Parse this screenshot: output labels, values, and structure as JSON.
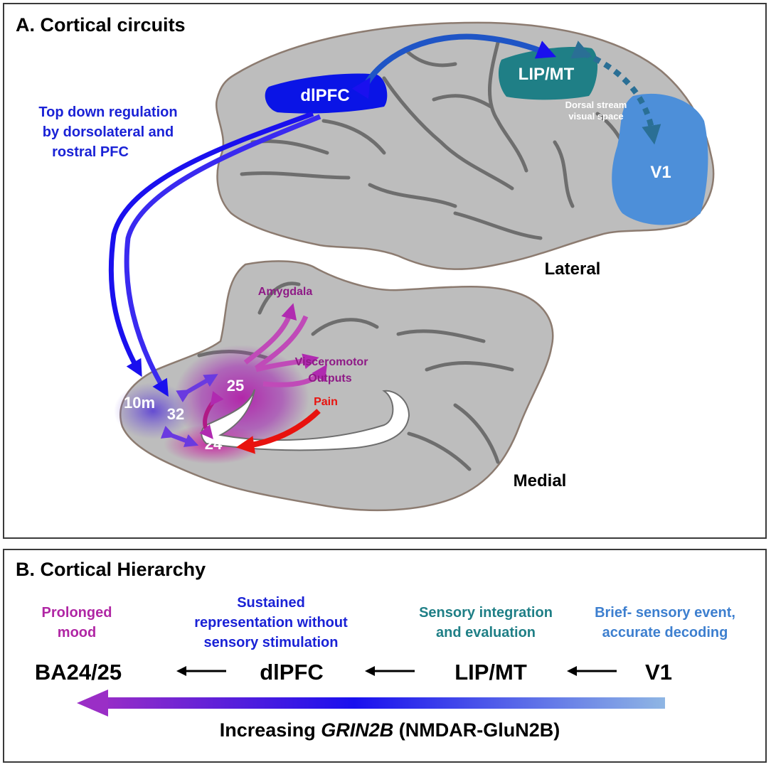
{
  "panel_a": {
    "title": "A. Cortical circuits",
    "top_down_label": [
      "Top down regulation",
      "by dorsolateral and",
      "rostral PFC"
    ],
    "regions": {
      "dlpfc": "dlPFC",
      "lip_mt": "LIP/MT",
      "v1": "V1",
      "area_10m": "10m",
      "area_32": "32",
      "area_25": "25",
      "area_24": "24"
    },
    "dorsal_stream": [
      "Dorsal stream",
      "visual space"
    ],
    "lateral_label": "Lateral",
    "medial_label": "Medial",
    "amygdala_label": "Amygdala",
    "visceromotor_label": [
      "Visceromotor",
      "Outputs"
    ],
    "pain_label": "Pain"
  },
  "panel_b": {
    "title": "B. Cortical Hierarchy",
    "descriptions": {
      "mood": [
        "Prolonged",
        "mood"
      ],
      "sustained": [
        "Sustained",
        "representation without",
        "sensory stimulation"
      ],
      "integration": [
        "Sensory integration",
        "and evaluation"
      ],
      "brief": [
        "Brief- sensory event,",
        "accurate decoding"
      ]
    },
    "stages": [
      "BA24/25",
      "dlPFC",
      "LIP/MT",
      "V1"
    ],
    "gradient_label": {
      "prefix": "Increasing ",
      "gene": "GRIN2B",
      "suffix": " (NMDAR-GluN2B)"
    }
  },
  "colors": {
    "brain_fill": "#bdbdbd",
    "sulcus": "#6e6e6e",
    "outline": "#8c7b70",
    "dlpfc": "#0a14e6",
    "lip_mt": "#1f7f86",
    "v1": "#4d8fd9",
    "top_down_text": "#1a22d6",
    "magenta": "#8e1a86",
    "pain": "#e8120e",
    "integration_text": "#1f7f86",
    "brief_text": "#3d7fcf",
    "mood_text": "#b026a4"
  }
}
